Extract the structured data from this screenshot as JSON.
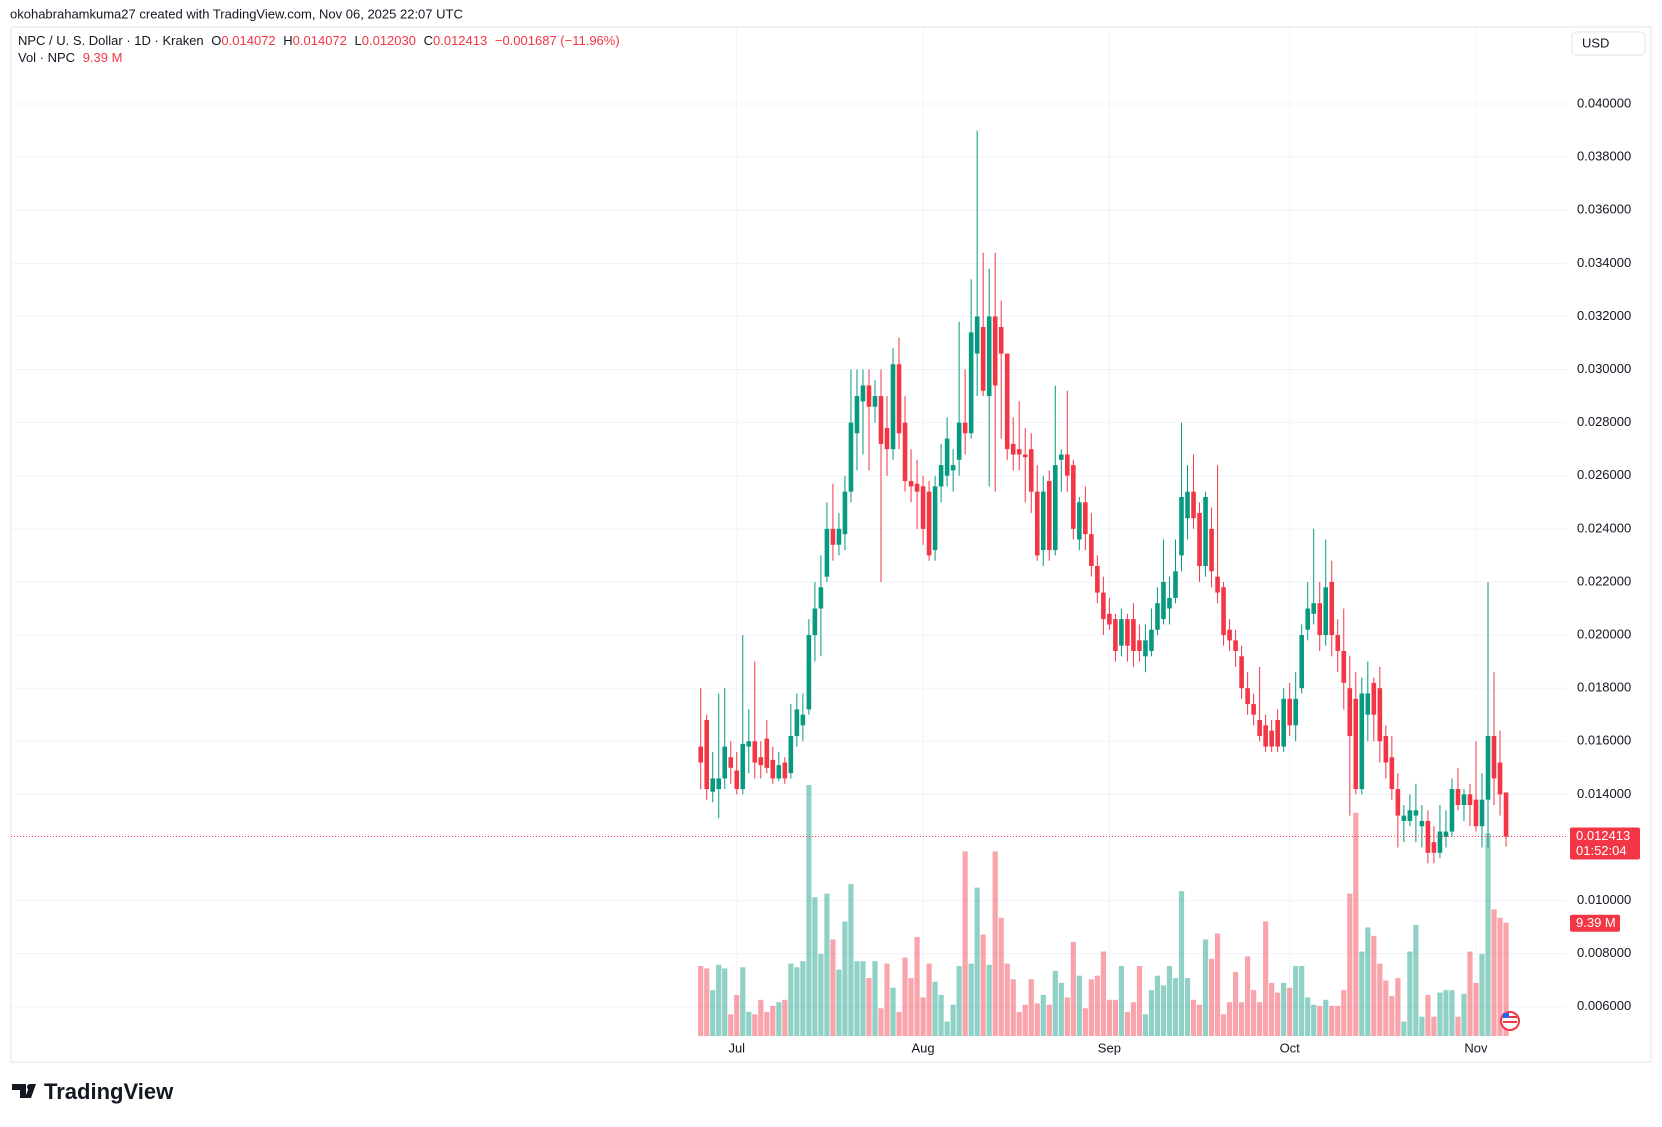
{
  "chart_data": {
    "type": "candlestick",
    "attribution": "okohabrahamkuma27 created with TradingView.com, Nov 06, 2025 22:07 UTC",
    "brand": "TradingView",
    "currency": "USD",
    "legend": {
      "symbol": "NPC / U. S. Dollar · 1D · Kraken",
      "keys": [
        "O",
        "H",
        "L",
        "C"
      ],
      "values": [
        "0.014072",
        "0.014072",
        "0.012030",
        "0.012413"
      ],
      "change": "−0.001687 (−11.96%)"
    },
    "countdown": "01:52:04",
    "categories": [
      null,
      null,
      null,
      null,
      null,
      null,
      "Jul",
      null,
      null,
      null,
      null,
      null,
      null,
      null,
      null,
      null,
      null,
      null,
      null,
      null,
      null,
      null,
      null,
      null,
      null,
      null,
      null,
      null,
      null,
      null,
      null,
      null,
      null,
      null,
      null,
      null,
      null,
      "Aug",
      null,
      null,
      null,
      null,
      null,
      null,
      null,
      null,
      null,
      null,
      null,
      null,
      null,
      null,
      null,
      null,
      null,
      null,
      null,
      null,
      null,
      null,
      null,
      null,
      null,
      null,
      null,
      null,
      null,
      null,
      "Sep",
      null,
      null,
      null,
      null,
      null,
      null,
      null,
      null,
      null,
      null,
      null,
      null,
      null,
      null,
      null,
      null,
      null,
      null,
      null,
      null,
      null,
      null,
      null,
      null,
      null,
      null,
      null,
      null,
      null,
      "Oct",
      null,
      null,
      null,
      null,
      null,
      null,
      null,
      null,
      null,
      null,
      null,
      null,
      null,
      null,
      null,
      null,
      null,
      null,
      null,
      null,
      null,
      null,
      null,
      null,
      null,
      null,
      null,
      null,
      null,
      null,
      "Nov",
      null,
      null,
      null,
      null,
      null
    ],
    "series": [
      {
        "name": "NPC",
        "up_color": "#089981",
        "down_color": "#f23645",
        "open": [
          0.0158,
          0.0168,
          0.0141,
          0.0142,
          0.0146,
          0.0154,
          0.0149,
          0.0142,
          0.0158,
          0.016,
          0.0154,
          0.0161,
          0.0153,
          0.0146,
          0.0152,
          0.0148,
          0.0162,
          0.0166,
          0.0172,
          0.02,
          0.021,
          0.0222,
          0.024,
          0.0234,
          0.0238,
          0.0254,
          0.0276,
          0.0288,
          0.0294,
          0.0286,
          0.029,
          0.0278,
          0.027,
          0.0302,
          0.028,
          0.0258,
          0.0257,
          0.0256,
          0.0254,
          0.0232,
          0.0256,
          0.026,
          0.0262,
          0.0266,
          0.028,
          0.0276,
          0.0306,
          0.0316,
          0.029,
          0.032,
          0.0316,
          0.0306,
          0.0272,
          0.027,
          0.0268,
          0.027,
          0.0254,
          0.0232,
          0.0258,
          0.0232,
          0.0266,
          0.0268,
          0.0264,
          0.0236,
          0.025,
          0.0238,
          0.0226,
          0.0216,
          0.0208,
          0.0206,
          0.0196,
          0.0206,
          0.0206,
          0.0198,
          0.0192,
          0.0194,
          0.0202,
          0.0206,
          0.021,
          0.0214,
          0.023,
          0.0244,
          0.0254,
          0.0246,
          0.0226,
          0.024,
          0.0222,
          0.0218,
          0.0202,
          0.0198,
          0.0192,
          0.018,
          0.0174,
          0.0168,
          0.0166,
          0.0164,
          0.0168,
          0.0158,
          0.0176,
          0.0166,
          0.018,
          0.0202,
          0.0208,
          0.0212,
          0.02,
          0.022,
          0.02,
          0.0194,
          0.018,
          0.0176,
          0.0142,
          0.017,
          0.0182,
          0.018,
          0.0162,
          0.0154,
          0.0142,
          0.013,
          0.013,
          0.0132,
          0.0128,
          0.013,
          0.0122,
          0.0118,
          0.0124,
          0.0126,
          0.0142,
          0.0136,
          0.014,
          0.0138,
          0.0128,
          0.0138,
          0.0162,
          0.0152,
          0.014072
        ],
        "high": [
          0.018,
          0.017,
          0.0156,
          0.0178,
          0.018,
          0.016,
          0.0156,
          0.02,
          0.0172,
          0.019,
          0.016,
          0.0168,
          0.0158,
          0.0156,
          0.0154,
          0.0174,
          0.0178,
          0.0178,
          0.0206,
          0.022,
          0.023,
          0.025,
          0.0257,
          0.0246,
          0.026,
          0.03,
          0.03,
          0.03,
          0.03,
          0.0296,
          0.03,
          0.029,
          0.0308,
          0.0312,
          0.029,
          0.027,
          0.0266,
          0.026,
          0.0258,
          0.026,
          0.0272,
          0.0282,
          0.027,
          0.0318,
          0.03,
          0.0334,
          0.039,
          0.0344,
          0.0338,
          0.0344,
          0.0326,
          0.0306,
          0.0282,
          0.0288,
          0.0278,
          0.0276,
          0.0264,
          0.026,
          0.0262,
          0.0294,
          0.027,
          0.0292,
          0.0266,
          0.0252,
          0.0256,
          0.0246,
          0.023,
          0.0222,
          0.0214,
          0.0208,
          0.021,
          0.0208,
          0.0212,
          0.0204,
          0.0204,
          0.021,
          0.0218,
          0.0236,
          0.0222,
          0.0236,
          0.028,
          0.0264,
          0.0268,
          0.025,
          0.0254,
          0.0248,
          0.0264,
          0.022,
          0.0206,
          0.0202,
          0.0196,
          0.0186,
          0.0178,
          0.0188,
          0.017,
          0.0168,
          0.0172,
          0.018,
          0.0182,
          0.0186,
          0.0204,
          0.022,
          0.024,
          0.022,
          0.0236,
          0.0228,
          0.0206,
          0.021,
          0.0192,
          0.0186,
          0.0184,
          0.019,
          0.0184,
          0.0188,
          0.0166,
          0.0162,
          0.0148,
          0.0136,
          0.014,
          0.0144,
          0.0136,
          0.0134,
          0.0128,
          0.0136,
          0.0134,
          0.0146,
          0.015,
          0.0142,
          0.0144,
          0.016,
          0.0148,
          0.022,
          0.0186,
          0.0164,
          0.014072
        ],
        "low": [
          0.0142,
          0.0138,
          0.0137,
          0.0131,
          0.0142,
          0.0144,
          0.014,
          0.014,
          0.0148,
          0.0146,
          0.0146,
          0.0148,
          0.0144,
          0.0145,
          0.0144,
          0.0146,
          0.0158,
          0.016,
          0.017,
          0.019,
          0.0192,
          0.022,
          0.0228,
          0.023,
          0.0232,
          0.025,
          0.0262,
          0.0268,
          0.0262,
          0.028,
          0.022,
          0.026,
          0.0266,
          0.027,
          0.0254,
          0.025,
          0.024,
          0.0234,
          0.0228,
          0.0228,
          0.025,
          0.0256,
          0.0254,
          0.026,
          0.0268,
          0.0274,
          0.029,
          0.029,
          0.0256,
          0.0254,
          0.0274,
          0.0266,
          0.0262,
          0.0262,
          0.025,
          0.0246,
          0.0228,
          0.0226,
          0.0228,
          0.023,
          0.0254,
          0.0254,
          0.0236,
          0.0232,
          0.0232,
          0.0222,
          0.0212,
          0.02,
          0.0202,
          0.019,
          0.0192,
          0.019,
          0.0188,
          0.019,
          0.0186,
          0.0192,
          0.02,
          0.0204,
          0.0204,
          0.0212,
          0.0224,
          0.0236,
          0.024,
          0.022,
          0.0222,
          0.0218,
          0.0212,
          0.0196,
          0.0194,
          0.0188,
          0.0176,
          0.017,
          0.0166,
          0.016,
          0.0156,
          0.0156,
          0.0156,
          0.0156,
          0.0162,
          0.016,
          0.0178,
          0.0198,
          0.0204,
          0.0194,
          0.0196,
          0.0192,
          0.0186,
          0.0172,
          0.0132,
          0.014,
          0.014,
          0.016,
          0.016,
          0.0152,
          0.0146,
          0.0138,
          0.012,
          0.0122,
          0.0128,
          0.0122,
          0.012,
          0.0114,
          0.0114,
          0.0116,
          0.012,
          0.0124,
          0.0134,
          0.013,
          0.0128,
          0.0126,
          0.012,
          0.012,
          0.0136,
          0.0132,
          0.01203
        ],
        "close": [
          0.0152,
          0.0142,
          0.0146,
          0.0146,
          0.0158,
          0.015,
          0.0142,
          0.0159,
          0.016,
          0.0152,
          0.0151,
          0.015,
          0.0146,
          0.0151,
          0.0146,
          0.0162,
          0.0172,
          0.017,
          0.02,
          0.021,
          0.0218,
          0.024,
          0.0234,
          0.024,
          0.0254,
          0.028,
          0.029,
          0.0294,
          0.0286,
          0.029,
          0.0272,
          0.027,
          0.0302,
          0.0276,
          0.0258,
          0.0256,
          0.0254,
          0.024,
          0.023,
          0.0256,
          0.0264,
          0.0274,
          0.0264,
          0.028,
          0.0276,
          0.0314,
          0.032,
          0.0292,
          0.032,
          0.0294,
          0.0306,
          0.027,
          0.0268,
          0.0268,
          0.0267,
          0.0254,
          0.023,
          0.0254,
          0.0232,
          0.0264,
          0.0268,
          0.026,
          0.024,
          0.025,
          0.0238,
          0.0226,
          0.0216,
          0.0206,
          0.0204,
          0.0194,
          0.0206,
          0.0196,
          0.0194,
          0.0194,
          0.0198,
          0.0202,
          0.0212,
          0.022,
          0.0214,
          0.0224,
          0.0252,
          0.0254,
          0.0244,
          0.0226,
          0.0252,
          0.0224,
          0.0216,
          0.02,
          0.0198,
          0.0194,
          0.018,
          0.0174,
          0.017,
          0.0162,
          0.0158,
          0.0158,
          0.0158,
          0.0176,
          0.0166,
          0.0176,
          0.02,
          0.021,
          0.0212,
          0.02,
          0.0218,
          0.02,
          0.0194,
          0.0182,
          0.0162,
          0.0142,
          0.0178,
          0.0178,
          0.017,
          0.016,
          0.0152,
          0.0142,
          0.0132,
          0.0132,
          0.0134,
          0.0134,
          0.013,
          0.0118,
          0.0118,
          0.0126,
          0.0126,
          0.0142,
          0.0136,
          0.014,
          0.0136,
          0.0128,
          0.0138,
          0.0162,
          0.0146,
          0.014,
          0.012413
        ]
      }
    ],
    "volume": {
      "name": "Vol · NPC",
      "last_label": "9.39 M",
      "values": [
        5.8,
        5.6,
        3.8,
        5.9,
        5.6,
        1.8,
        3.4,
        5.7,
        2.0,
        1.8,
        3.0,
        2.0,
        2.5,
        2.8,
        3.0,
        6.0,
        5.7,
        6.2,
        20.8,
        11.5,
        6.8,
        11.8,
        8.0,
        5.5,
        9.5,
        12.6,
        6.2,
        6.2,
        4.8,
        6.2,
        2.3,
        6.0,
        4.0,
        2.0,
        6.5,
        4.8,
        8.2,
        3.2,
        6.0,
        4.5,
        3.4,
        1.2,
        2.6,
        5.8,
        15.3,
        6.0,
        12.3,
        8.4,
        5.9,
        15.3,
        9.8,
        6.0,
        4.7,
        2.0,
        2.6,
        4.7,
        2.7,
        3.4,
        2.6,
        5.4,
        4.4,
        3.2,
        7.8,
        5.0,
        2.3,
        4.7,
        5.0,
        7.0,
        3.0,
        3.0,
        5.8,
        2.0,
        2.8,
        5.8,
        1.8,
        3.8,
        5.0,
        4.2,
        5.8,
        4.8,
        12.0,
        4.8,
        3.0,
        2.6,
        8.0,
        6.4,
        8.5,
        1.8,
        2.8,
        5.3,
        2.8,
        6.6,
        3.8,
        2.8,
        9.5,
        4.4,
        3.6,
        4.4,
        4.0,
        5.8,
        5.8,
        3.2,
        2.6,
        2.5,
        3.0,
        2.5,
        2.5,
        3.8,
        11.8,
        18.5,
        7.0,
        9.0,
        8.3,
        6.0,
        4.6,
        3.3,
        4.8,
        1.2,
        7.0,
        9.2,
        1.6,
        3.4,
        1.6,
        3.6,
        3.8,
        3.8,
        1.6,
        3.5,
        7.0,
        4.4,
        6.8,
        16.8,
        10.5,
        9.8,
        9.39
      ]
    },
    "ylim": [
      0.0049,
      0.0429
    ],
    "yticks": [
      {
        "value": 0.04,
        "label": "0.040000"
      },
      {
        "value": 0.038,
        "label": "0.038000"
      },
      {
        "value": 0.036,
        "label": "0.036000"
      },
      {
        "value": 0.034,
        "label": "0.034000"
      },
      {
        "value": 0.032,
        "label": "0.032000"
      },
      {
        "value": 0.03,
        "label": "0.030000"
      },
      {
        "value": 0.028,
        "label": "0.028000"
      },
      {
        "value": 0.026,
        "label": "0.026000"
      },
      {
        "value": 0.024,
        "label": "0.024000"
      },
      {
        "value": 0.022,
        "label": "0.022000"
      },
      {
        "value": 0.02,
        "label": "0.020000"
      },
      {
        "value": 0.018,
        "label": "0.018000"
      },
      {
        "value": 0.016,
        "label": "0.016000"
      },
      {
        "value": 0.014,
        "label": "0.014000"
      },
      {
        "value": 0.01,
        "label": "0.010000"
      },
      {
        "value": 0.008,
        "label": "0.008000"
      },
      {
        "value": 0.006,
        "label": "0.006000"
      }
    ],
    "grid": true
  }
}
